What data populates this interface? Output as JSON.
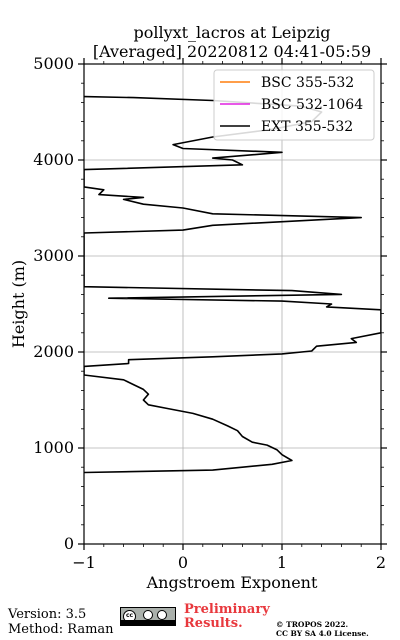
{
  "chart_data": {
    "type": "line",
    "title": "pollyxt_lacros at Leipzig",
    "subtitle": "[Averaged] 20220812 04:41-05:59",
    "xlabel": "Angstroem Exponent",
    "ylabel": "Height (m)",
    "xlim": [
      -1,
      2
    ],
    "ylim": [
      0,
      5000
    ],
    "xticks": [
      -1,
      0,
      1,
      2
    ],
    "yticks": [
      0,
      1000,
      2000,
      3000,
      4000,
      5000
    ],
    "grid": true,
    "legend_position": "top-right",
    "series": [
      {
        "name": "BSC 355-532",
        "color": "#ff7f0e",
        "points": []
      },
      {
        "name": "BSC 532-1064",
        "color": "#e020e0",
        "points": []
      },
      {
        "name": "EXT 355-532",
        "color": "#000000",
        "points": [
          [
            -1.0,
            745
          ],
          [
            0.3,
            770
          ],
          [
            0.6,
            800
          ],
          [
            0.9,
            830
          ],
          [
            1.1,
            870
          ],
          [
            1.0,
            930
          ],
          [
            0.95,
            980
          ],
          [
            0.85,
            1030
          ],
          [
            0.7,
            1060
          ],
          [
            0.6,
            1120
          ],
          [
            0.55,
            1180
          ],
          [
            0.45,
            1230
          ],
          [
            0.3,
            1300
          ],
          [
            0.1,
            1360
          ],
          [
            -0.15,
            1410
          ],
          [
            -0.35,
            1450
          ],
          [
            -0.4,
            1500
          ],
          [
            -0.35,
            1560
          ],
          [
            -0.4,
            1610
          ],
          [
            -0.5,
            1660
          ],
          [
            -0.6,
            1710
          ],
          [
            -1.0,
            1760
          ],
          [
            -1.0,
            1850
          ],
          [
            -0.55,
            1880
          ],
          [
            -0.55,
            1920
          ],
          [
            0.3,
            1950
          ],
          [
            1.0,
            1980
          ],
          [
            1.3,
            2010
          ],
          [
            1.35,
            2060
          ],
          [
            1.75,
            2100
          ],
          [
            1.7,
            2140
          ],
          [
            2.0,
            2200
          ],
          [
            2.0,
            2440
          ],
          [
            1.45,
            2470
          ],
          [
            1.5,
            2500
          ],
          [
            1.0,
            2530
          ],
          [
            -0.75,
            2560
          ],
          [
            1.6,
            2600
          ],
          [
            1.1,
            2640
          ],
          [
            -1.0,
            2680
          ],
          [
            -1.0,
            3240
          ],
          [
            0.0,
            3270
          ],
          [
            0.3,
            3320
          ],
          [
            1.8,
            3400
          ],
          [
            0.3,
            3440
          ],
          [
            0.0,
            3500
          ],
          [
            -0.4,
            3540
          ],
          [
            -0.6,
            3590
          ],
          [
            -0.4,
            3610
          ],
          [
            -0.85,
            3640
          ],
          [
            -0.8,
            3690
          ],
          [
            -1.0,
            3720
          ],
          [
            -1.0,
            3900
          ],
          [
            0.6,
            3950
          ],
          [
            0.5,
            4000
          ],
          [
            0.3,
            4020
          ],
          [
            0.65,
            4050
          ],
          [
            1.0,
            4080
          ],
          [
            0.0,
            4120
          ],
          [
            -0.1,
            4160
          ],
          [
            0.3,
            4240
          ],
          [
            0.9,
            4320
          ],
          [
            1.3,
            4400
          ],
          [
            1.4,
            4500
          ],
          [
            1.2,
            4560
          ],
          [
            0.3,
            4620
          ],
          [
            -0.5,
            4650
          ],
          [
            -1.0,
            4660
          ]
        ]
      }
    ]
  },
  "footer": {
    "version": "Version: 3.5",
    "method": "Method: Raman",
    "preliminary_line1": "Preliminary",
    "preliminary_line2": "Results.",
    "copyright_line1": "© TROPOS 2022.",
    "copyright_line2": "CC BY SA 4.0 License.",
    "license_badge_icon": "cc-by-sa-badge-icon"
  }
}
